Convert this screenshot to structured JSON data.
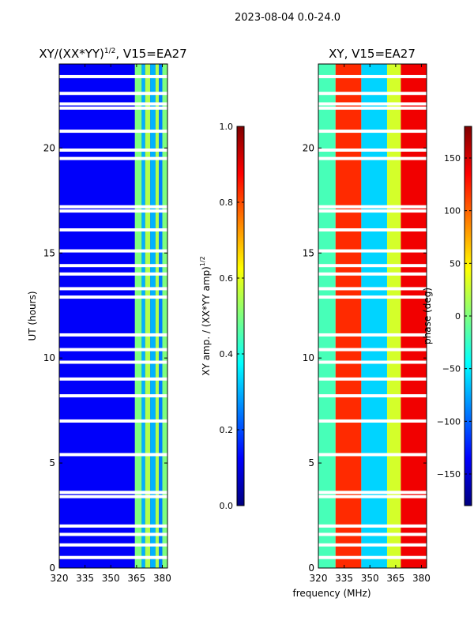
{
  "figure": {
    "suptitle": "2023-08-04 0.0-24.0",
    "shared_xlabel": "frequency (MHz)",
    "left_title_main": "XY/(XX*YY)",
    "left_title_exp": "1/2",
    "left_title_rest": ", V15=EA27",
    "right_title": "XY, V15=EA27",
    "amp_cbar_label_main": "XY amp. / (XX*YY amp)",
    "amp_cbar_label_exp": "1/2",
    "phase_cbar_label": "phase (deg)"
  },
  "colors": {
    "jet": [
      "#00007f",
      "#0000ff",
      "#007fff",
      "#00ffff",
      "#7fff7f",
      "#ffff00",
      "#ff7f00",
      "#ff0000",
      "#7f0000"
    ],
    "gap": "#ffffff",
    "axis": "#000000"
  },
  "chart_data": [
    {
      "type": "heatmap",
      "title": "XY/(XX*YY)^1/2, V15=EA27",
      "xlabel": "",
      "ylabel": "UT (hours)",
      "xlim": [
        320,
        383
      ],
      "ylim": [
        0,
        24
      ],
      "xticks": [
        320,
        335,
        350,
        365,
        380
      ],
      "yticks": [
        0,
        5,
        10,
        15,
        20
      ],
      "colorbar": {
        "label": "XY amp. / (XX*YY amp)^1/2",
        "range": [
          0.0,
          1.0
        ],
        "ticks": [
          "0.0",
          "0.2",
          "0.4",
          "0.6",
          "0.8",
          "1.0"
        ]
      },
      "background_value": 0.1,
      "bands": [
        {
          "freq": [
            320,
            364
          ],
          "value": 0.12
        },
        {
          "freq": [
            364,
            368
          ],
          "value": 0.5
        },
        {
          "freq": [
            368,
            370
          ],
          "value": 0.3
        },
        {
          "freq": [
            370,
            373
          ],
          "value": 0.55
        },
        {
          "freq": [
            373,
            376
          ],
          "value": 0.3
        },
        {
          "freq": [
            376,
            378
          ],
          "value": 0.55
        },
        {
          "freq": [
            378,
            380
          ],
          "value": 0.25
        },
        {
          "freq": [
            380,
            383
          ],
          "value": 0.5
        }
      ],
      "gaps_hours": [
        0.5,
        1.1,
        1.6,
        2.0,
        3.4,
        3.6,
        5.4,
        7.0,
        8.2,
        9.0,
        9.8,
        10.4,
        11.1,
        12.9,
        13.3,
        14.0,
        14.4,
        15.1,
        16.1,
        17.0,
        17.2,
        19.5,
        19.9,
        20.8,
        21.9,
        22.1,
        22.6,
        23.4
      ]
    },
    {
      "type": "heatmap",
      "title": "XY, V15=EA27",
      "xlabel": "frequency (MHz)",
      "ylabel": "",
      "xlim": [
        320,
        383
      ],
      "ylim": [
        0,
        24
      ],
      "xticks": [
        320,
        335,
        350,
        365,
        380
      ],
      "yticks": [
        0,
        5,
        10,
        15,
        20
      ],
      "colorbar": {
        "label": "phase (deg)",
        "range": [
          -180,
          180
        ],
        "ticks": [
          "−150",
          "−100",
          "−50",
          "0",
          "50",
          "100",
          "150"
        ]
      },
      "regions": [
        {
          "freq": [
            320,
            330
          ],
          "hours": [
            0,
            24
          ],
          "value": -20
        },
        {
          "freq": [
            330,
            345
          ],
          "hours": [
            0,
            24
          ],
          "value": 120
        },
        {
          "freq": [
            345,
            360
          ],
          "hours": [
            0,
            24
          ],
          "value": -60
        },
        {
          "freq": [
            360,
            368
          ],
          "hours": [
            0,
            24
          ],
          "value": 30
        },
        {
          "freq": [
            368,
            383
          ],
          "hours": [
            0,
            24
          ],
          "value": 140
        }
      ],
      "gaps_hours": [
        0.5,
        1.1,
        1.6,
        2.0,
        3.4,
        3.6,
        5.4,
        7.0,
        8.2,
        9.0,
        9.8,
        10.4,
        11.1,
        12.9,
        13.3,
        14.0,
        14.4,
        15.1,
        16.1,
        17.0,
        17.2,
        19.5,
        19.9,
        20.8,
        21.9,
        22.1,
        22.6,
        23.4
      ]
    }
  ]
}
